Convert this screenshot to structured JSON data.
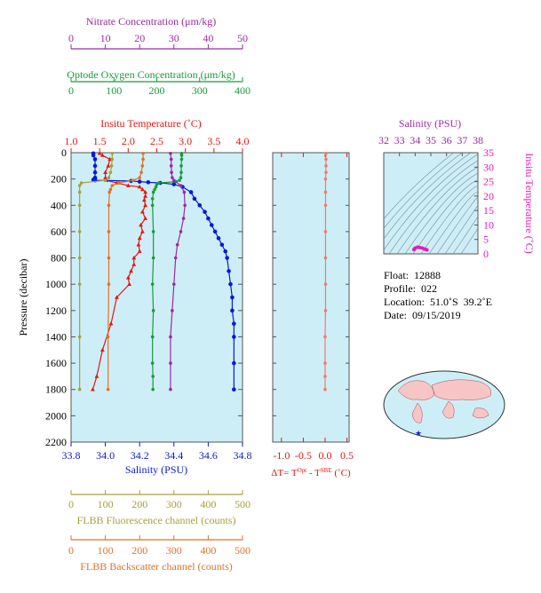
{
  "colors": {
    "nitrate": "#9b2aa0",
    "oxygen": "#1a9a3a",
    "temperature": "#e8140f",
    "salinity": "#0a18d8",
    "fluorescence": "#a4a23c",
    "backscatter": "#e0722a",
    "delta": "#f07a70",
    "plot_bg": "#cdeef7"
  },
  "axes": {
    "nitrate": {
      "label": "Nitrate Concentration (μm/kg)",
      "ticks": [
        "0",
        "10",
        "20",
        "30",
        "40",
        "50"
      ],
      "range": [
        0,
        50
      ]
    },
    "oxygen": {
      "label": "Optode Oxygen Concentration (μm/kg)",
      "ticks": [
        "0",
        "100",
        "200",
        "300",
        "400"
      ],
      "range": [
        0,
        400
      ]
    },
    "temperature": {
      "label": "Insitu Temperature (˚C)",
      "ticks": [
        "1.0",
        "1.5",
        "2.0",
        "2.5",
        "3.0",
        "3.5",
        "4.0"
      ],
      "range": [
        1.0,
        4.0
      ]
    },
    "pressure": {
      "label": "Pressure (decibar)",
      "ticks": [
        "0",
        "200",
        "400",
        "600",
        "800",
        "1000",
        "1200",
        "1400",
        "1600",
        "1800",
        "2000",
        "2200"
      ],
      "range": [
        0,
        2200
      ]
    },
    "salinity": {
      "label": "Salinity (PSU)",
      "ticks": [
        "33.8",
        "34.0",
        "34.2",
        "34.4",
        "34.6",
        "34.8"
      ],
      "range": [
        33.8,
        34.8
      ]
    },
    "delta": {
      "label": "ΔT= T",
      "sup1": "Opt",
      "mid": " - T",
      "sup2": "SBE",
      "end": " (˚C)",
      "ticks": [
        "-1.0",
        "-0.5",
        "0.0",
        "0.5"
      ],
      "range": [
        -1.2,
        0.55
      ]
    },
    "fluorescence": {
      "label": "FLBB Fluorescence channel (counts)",
      "ticks": [
        "0",
        "100",
        "200",
        "300",
        "400",
        "500"
      ],
      "range": [
        0,
        500
      ]
    },
    "backscatter": {
      "label": "FLBB Backscatter channel (counts)",
      "ticks": [
        "0",
        "100",
        "200",
        "300",
        "400",
        "500"
      ],
      "range": [
        0,
        500
      ]
    },
    "ts_salinity": {
      "label": "Salinity (PSU)",
      "ticks": [
        "32",
        "33",
        "34",
        "35",
        "36",
        "37",
        "38"
      ],
      "range": [
        32,
        38
      ]
    },
    "ts_temperature": {
      "label": "Insitu Temperature (˚C)",
      "ticks": [
        "0",
        "5",
        "10",
        "15",
        "20",
        "25",
        "30",
        "35"
      ],
      "range": [
        0,
        35
      ]
    }
  },
  "info": {
    "float": "Float:  12888",
    "profile": "Profile:  022",
    "location": "Location:  51.0˚S  39.2˚E",
    "date": "Date:  09/15/2019"
  },
  "chart_data": [
    {
      "type": "line",
      "title": "",
      "ylabel": "Pressure (decibar)",
      "ylim": [
        0,
        2200
      ],
      "series": [
        {
          "name": "Insitu Temperature (˚C)",
          "color": "#e8140f",
          "x": [
            1.5,
            1.55,
            1.68,
            1.65,
            1.6,
            1.6,
            1.62,
            1.8,
            2.0,
            2.2,
            2.25,
            2.3,
            2.3,
            2.28,
            2.3,
            2.25,
            2.3,
            2.22,
            2.25,
            2.2,
            2.18,
            2.2,
            2.1,
            2.1,
            2.05,
            2.0,
            2.02,
            1.8,
            1.7,
            1.55,
            1.45,
            1.38
          ],
          "y": [
            5,
            20,
            50,
            100,
            150,
            190,
            210,
            230,
            250,
            260,
            280,
            300,
            330,
            360,
            400,
            450,
            500,
            550,
            600,
            650,
            700,
            750,
            800,
            850,
            900,
            950,
            1000,
            1100,
            1300,
            1500,
            1700,
            1800
          ]
        },
        {
          "name": "Salinity (PSU)",
          "color": "#0a18d8",
          "x": [
            33.93,
            33.93,
            33.94,
            33.94,
            33.94,
            33.94,
            33.94,
            33.93,
            33.94,
            34.15,
            34.2,
            34.25,
            34.32,
            34.4,
            34.45,
            34.5,
            34.52,
            34.55,
            34.58,
            34.6,
            34.62,
            34.64,
            34.66,
            34.68,
            34.7,
            34.71,
            34.72,
            34.73,
            34.74,
            34.74,
            34.75,
            34.75,
            34.75,
            34.75
          ],
          "y": [
            5,
            20,
            50,
            100,
            150,
            190,
            200,
            205,
            210,
            215,
            220,
            225,
            230,
            240,
            260,
            300,
            350,
            400,
            450,
            500,
            550,
            600,
            650,
            700,
            750,
            800,
            900,
            1000,
            1100,
            1200,
            1300,
            1400,
            1600,
            1800
          ]
        },
        {
          "name": "Optode Oxygen Concentration (μm/kg)",
          "color": "#1a9a3a",
          "x": [
            258,
            258,
            258,
            257,
            257,
            256,
            253,
            245,
            205,
            200,
            198,
            195,
            192,
            190,
            190,
            192,
            192,
            190,
            192,
            190,
            190,
            191,
            191
          ],
          "y": [
            5,
            20,
            50,
            100,
            150,
            190,
            210,
            220,
            230,
            240,
            260,
            280,
            300,
            350,
            400,
            600,
            800,
            1000,
            1200,
            1400,
            1600,
            1700,
            1800
          ]
        },
        {
          "name": "Nitrate Concentration (μm/kg)",
          "color": "#9b2aa0",
          "x": [
            29,
            29.2,
            29.2,
            29.3,
            29.5,
            30,
            32,
            33,
            33.2,
            32.8,
            32,
            31,
            30.5,
            30,
            29.5,
            29,
            29,
            29
          ],
          "y": [
            5,
            50,
            100,
            150,
            190,
            210,
            250,
            300,
            400,
            500,
            600,
            700,
            800,
            1000,
            1200,
            1400,
            1600,
            1800
          ]
        },
        {
          "name": "FLBB Fluorescence channel (counts)",
          "color": "#a4a23c",
          "x": [
            120,
            120,
            118,
            115,
            110,
            100,
            30,
            25,
            25,
            25,
            25,
            25,
            25,
            25,
            25
          ],
          "y": [
            5,
            50,
            100,
            150,
            190,
            210,
            230,
            250,
            300,
            400,
            600,
            800,
            1000,
            1400,
            1800
          ]
        },
        {
          "name": "FLBB Backscatter channel (counts)",
          "color": "#e0722a",
          "x": [
            210,
            210,
            208,
            205,
            200,
            180,
            140,
            120,
            115,
            112,
            110,
            110,
            110,
            110,
            108,
            108
          ],
          "y": [
            5,
            50,
            100,
            150,
            190,
            210,
            230,
            250,
            280,
            300,
            400,
            600,
            800,
            1000,
            1400,
            1800
          ]
        }
      ]
    },
    {
      "type": "line",
      "xlabel": "ΔT= T^Opt - T^SBE (˚C)",
      "ylim": [
        0,
        2200
      ],
      "series": [
        {
          "name": "ΔT",
          "color": "#f07a70",
          "x": [
            0.02,
            0.02,
            0.02,
            0.02,
            0.01,
            0.01,
            0.01,
            0.01,
            0.01,
            0.01,
            0.01,
            0.0,
            0.0,
            0.0,
            0.0
          ],
          "y": [
            5,
            50,
            100,
            150,
            200,
            300,
            400,
            600,
            800,
            1000,
            1200,
            1400,
            1600,
            1700,
            1800
          ]
        }
      ]
    },
    {
      "type": "scatter",
      "xlabel": "Salinity (PSU)",
      "ylabel": "Insitu Temperature (˚C)",
      "xlim": [
        32,
        38
      ],
      "ylim": [
        0,
        35
      ],
      "series": [
        {
          "name": "T-S",
          "color": "#e81ab8",
          "x": [
            33.93,
            33.94,
            34.0,
            34.15,
            34.3,
            34.45,
            34.6,
            34.7,
            34.75
          ],
          "y": [
            1.5,
            1.6,
            2.0,
            2.3,
            2.2,
            2.0,
            1.7,
            1.5,
            1.4
          ]
        }
      ]
    }
  ]
}
